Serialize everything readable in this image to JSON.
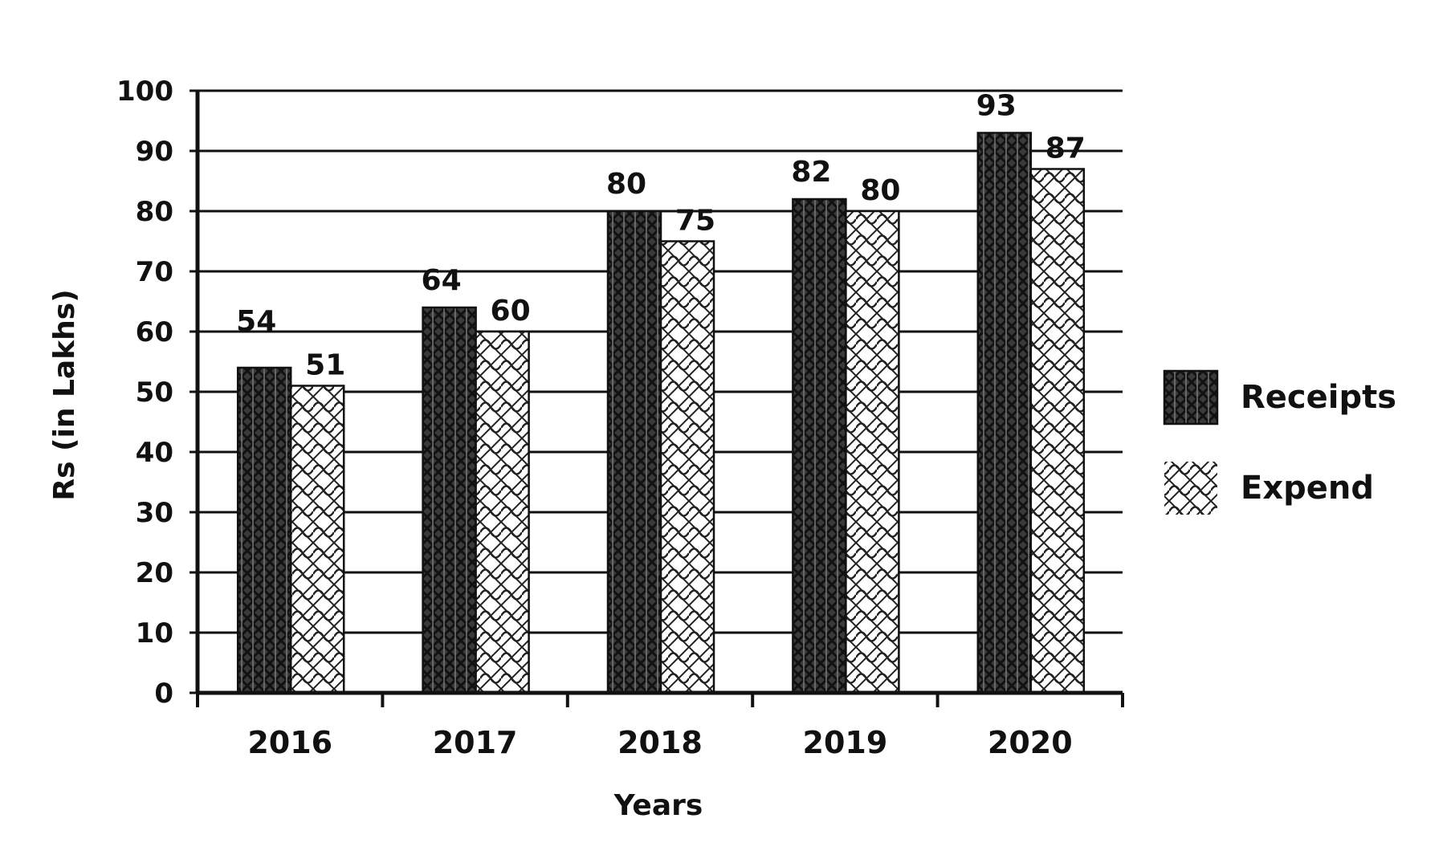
{
  "chart_data": {
    "type": "bar",
    "title": "",
    "xlabel": "Years",
    "ylabel": "Rs (in Lakhs)",
    "ylim": [
      0,
      100
    ],
    "yticks": [
      0,
      10,
      20,
      30,
      40,
      50,
      60,
      70,
      80,
      90,
      100
    ],
    "categories": [
      "2016",
      "2017",
      "2018",
      "2019",
      "2020"
    ],
    "series": [
      {
        "name": "Receipts",
        "values": [
          54,
          64,
          80,
          82,
          93
        ],
        "pattern": "dark-crosshatch",
        "color": "#2a2a2a"
      },
      {
        "name": "Expend",
        "values": [
          51,
          60,
          75,
          80,
          87
        ],
        "pattern": "light-weave",
        "color": "#ffffff"
      }
    ],
    "grid": true,
    "legend": "right"
  }
}
